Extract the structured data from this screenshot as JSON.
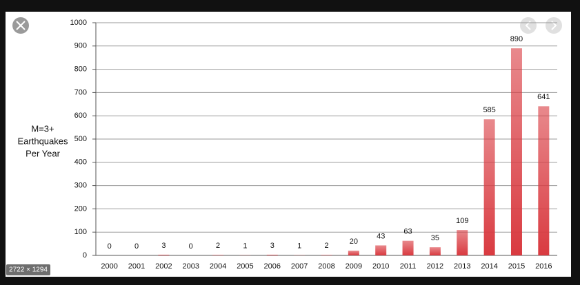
{
  "chart_data": {
    "type": "bar",
    "ylabel": [
      "M=3+",
      "Earthquakes",
      "Per Year"
    ],
    "categories": [
      "2000",
      "2001",
      "2002",
      "2003",
      "2004",
      "2005",
      "2006",
      "2007",
      "2008",
      "2009",
      "2010",
      "2011",
      "2012",
      "2013",
      "2014",
      "2015",
      "2016"
    ],
    "values": [
      0,
      0,
      3,
      0,
      2,
      1,
      3,
      1,
      2,
      20,
      43,
      63,
      35,
      109,
      585,
      890,
      641
    ],
    "color": "#d93a40",
    "ylim": [
      0,
      1000
    ],
    "yticks": [
      0,
      100,
      200,
      300,
      400,
      500,
      600,
      700,
      800,
      900,
      1000
    ],
    "grid": true
  },
  "viewer": {
    "image_size": "2722 × 1294"
  }
}
